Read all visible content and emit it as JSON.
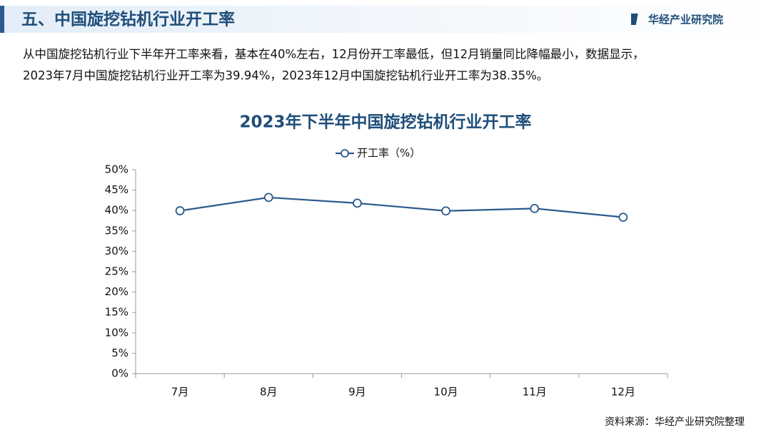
{
  "header": {
    "title": "五、中国旋挖钻机行业开工率",
    "logo": "华经产业研究院"
  },
  "paragraph": {
    "lines": [
      "从中国旋挖钻机行业下半年开工率来看，基本在40%左右，12月份开工率最低，但12月销量同比降幅最小，数据显示，",
      "2023年7月中国旋挖钻机行业开工率为39.94%，2023年12月中国旋挖钻机行业开工率为38.35%。"
    ]
  },
  "chart_data": {
    "type": "line",
    "title": "2023年下半年中国旋挖钻机行业开工率",
    "categories": [
      "7月",
      "8月",
      "9月",
      "10月",
      "11月",
      "12月"
    ],
    "series": [
      {
        "name": "开工率（%）",
        "color": "#2b5a8c",
        "values": [
          39.94,
          43.2,
          41.8,
          39.9,
          40.5,
          38.35
        ]
      }
    ],
    "ylim": [
      0,
      50
    ],
    "yticks": [
      {
        "value": 0,
        "label": "0%"
      },
      {
        "value": 5,
        "label": "5%"
      },
      {
        "value": 10,
        "label": "10%"
      },
      {
        "value": 15,
        "label": "15%"
      },
      {
        "value": 20,
        "label": "20%"
      },
      {
        "value": 25,
        "label": "25%"
      },
      {
        "value": 30,
        "label": "30%"
      },
      {
        "value": 35,
        "label": "35%"
      },
      {
        "value": 40,
        "label": "40%"
      },
      {
        "value": 45,
        "label": "45%"
      },
      {
        "value": 50,
        "label": "50%"
      }
    ],
    "grid": false,
    "legend": "top"
  },
  "source": "资料来源：华经产业研究院整理"
}
